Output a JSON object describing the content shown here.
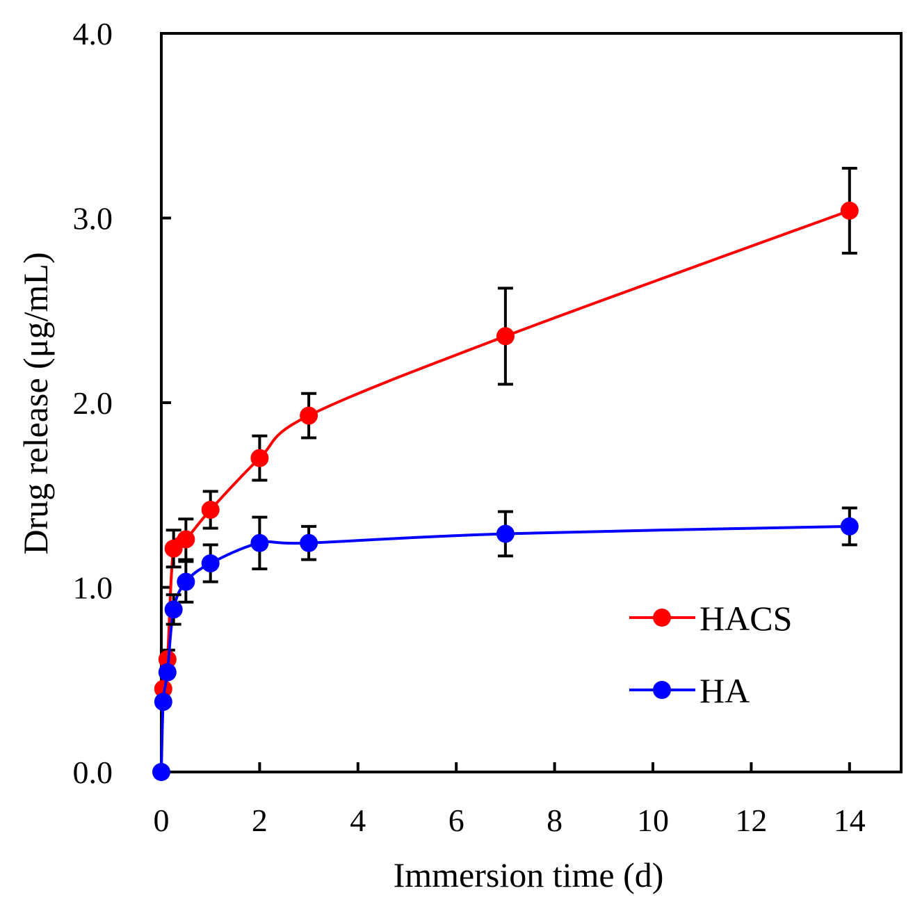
{
  "chart_data": {
    "type": "line",
    "title": "",
    "xlabel": "Immersion time (d)",
    "ylabel": "Drug release (μg/mL)",
    "xlim": [
      0,
      15
    ],
    "ylim": [
      0,
      4
    ],
    "xticks": [
      0,
      2,
      4,
      6,
      8,
      10,
      12,
      14
    ],
    "xtick_labels": [
      "0",
      "2",
      "4",
      "6",
      "8",
      "10",
      "12",
      "14"
    ],
    "yticks": [
      0,
      1,
      2,
      3,
      4
    ],
    "ytick_labels": [
      "0.0",
      "1.0",
      "2.0",
      "3.0",
      "4.0"
    ],
    "grid": false,
    "legend_position": "bottom-right",
    "series": [
      {
        "name": "HACS",
        "color": "#ff0000",
        "x": [
          0.04,
          0.125,
          0.25,
          0.5,
          1,
          2,
          3,
          7,
          14
        ],
        "y": [
          0.45,
          0.61,
          1.21,
          1.26,
          1.42,
          1.7,
          1.93,
          2.36,
          3.04
        ],
        "err": [
          0.0,
          0.05,
          0.1,
          0.11,
          0.1,
          0.12,
          0.12,
          0.26,
          0.23
        ]
      },
      {
        "name": "HA",
        "color": "#0000ff",
        "x": [
          0.0,
          0.04,
          0.125,
          0.25,
          0.5,
          1,
          2,
          3,
          7,
          14
        ],
        "y": [
          0.0,
          0.38,
          0.54,
          0.88,
          1.03,
          1.13,
          1.24,
          1.24,
          1.29,
          1.33
        ],
        "err": [
          0.0,
          0.0,
          0.0,
          0.08,
          0.11,
          0.1,
          0.14,
          0.09,
          0.12,
          0.1
        ]
      }
    ]
  }
}
